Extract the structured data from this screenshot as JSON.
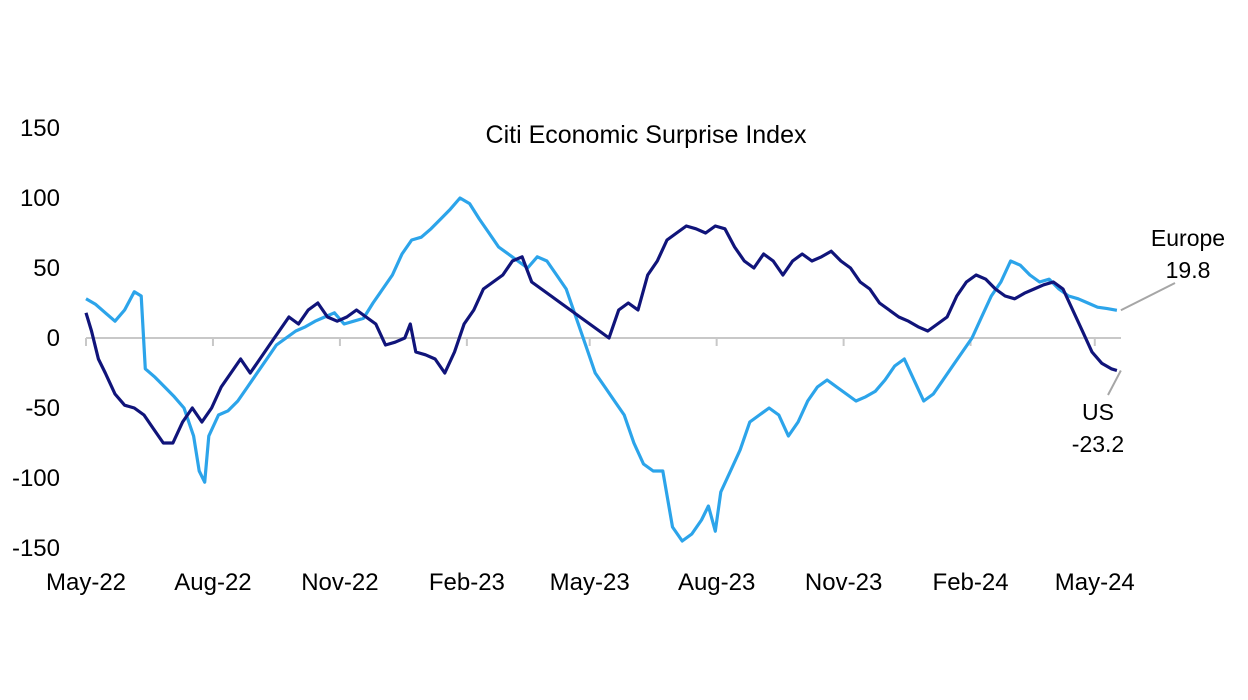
{
  "chart_data": {
    "type": "line",
    "title": "Citi Economic Surprise Index",
    "xlabel": "",
    "ylabel": "",
    "x_range": [
      "2022-05-01",
      "2024-05-20"
    ],
    "ylim": [
      -150,
      150
    ],
    "y_ticks": [
      150,
      100,
      50,
      0,
      -50,
      -100,
      -150
    ],
    "x_ticks": [
      {
        "date": "2022-05-01",
        "label": "May-22"
      },
      {
        "date": "2022-08-01",
        "label": "Aug-22"
      },
      {
        "date": "2022-11-01",
        "label": "Nov-22"
      },
      {
        "date": "2023-02-01",
        "label": "Feb-23"
      },
      {
        "date": "2023-05-01",
        "label": "May-23"
      },
      {
        "date": "2023-08-01",
        "label": "Aug-23"
      },
      {
        "date": "2023-11-01",
        "label": "Nov-23"
      },
      {
        "date": "2024-02-01",
        "label": "Feb-24"
      },
      {
        "date": "2024-05-01",
        "label": "May-24"
      }
    ],
    "grid": false,
    "legend": "none",
    "annotations": [
      {
        "series": "Europe",
        "label": "Europe",
        "value_label": "19.8"
      },
      {
        "series": "US",
        "label": "US",
        "value_label": "-23.2"
      }
    ],
    "series": [
      {
        "name": "Europe",
        "color": "#2ca4ea",
        "points": [
          [
            "2022-05-01",
            28
          ],
          [
            "2022-05-08",
            24
          ],
          [
            "2022-05-15",
            18
          ],
          [
            "2022-05-22",
            12
          ],
          [
            "2022-05-29",
            20
          ],
          [
            "2022-06-05",
            33
          ],
          [
            "2022-06-10",
            30
          ],
          [
            "2022-06-13",
            -22
          ],
          [
            "2022-06-20",
            -28
          ],
          [
            "2022-06-27",
            -35
          ],
          [
            "2022-07-04",
            -42
          ],
          [
            "2022-07-11",
            -50
          ],
          [
            "2022-07-18",
            -70
          ],
          [
            "2022-07-22",
            -95
          ],
          [
            "2022-07-26",
            -103
          ],
          [
            "2022-07-29",
            -70
          ],
          [
            "2022-08-05",
            -55
          ],
          [
            "2022-08-12",
            -52
          ],
          [
            "2022-08-19",
            -45
          ],
          [
            "2022-08-26",
            -35
          ],
          [
            "2022-09-02",
            -25
          ],
          [
            "2022-09-09",
            -15
          ],
          [
            "2022-09-16",
            -5
          ],
          [
            "2022-09-23",
            0
          ],
          [
            "2022-09-30",
            5
          ],
          [
            "2022-10-07",
            8
          ],
          [
            "2022-10-14",
            12
          ],
          [
            "2022-10-21",
            15
          ],
          [
            "2022-10-28",
            18
          ],
          [
            "2022-11-04",
            10
          ],
          [
            "2022-11-11",
            12
          ],
          [
            "2022-11-18",
            14
          ],
          [
            "2022-11-25",
            25
          ],
          [
            "2022-12-02",
            35
          ],
          [
            "2022-12-09",
            45
          ],
          [
            "2022-12-16",
            60
          ],
          [
            "2022-12-23",
            70
          ],
          [
            "2022-12-30",
            72
          ],
          [
            "2023-01-06",
            78
          ],
          [
            "2023-01-13",
            85
          ],
          [
            "2023-01-20",
            92
          ],
          [
            "2023-01-27",
            100
          ],
          [
            "2023-02-03",
            96
          ],
          [
            "2023-02-10",
            85
          ],
          [
            "2023-02-17",
            75
          ],
          [
            "2023-02-24",
            65
          ],
          [
            "2023-03-03",
            60
          ],
          [
            "2023-03-10",
            55
          ],
          [
            "2023-03-17",
            50
          ],
          [
            "2023-03-24",
            58
          ],
          [
            "2023-03-31",
            55
          ],
          [
            "2023-04-07",
            45
          ],
          [
            "2023-04-14",
            35
          ],
          [
            "2023-04-21",
            15
          ],
          [
            "2023-04-28",
            -5
          ],
          [
            "2023-05-05",
            -25
          ],
          [
            "2023-05-12",
            -35
          ],
          [
            "2023-05-19",
            -45
          ],
          [
            "2023-05-26",
            -55
          ],
          [
            "2023-06-02",
            -75
          ],
          [
            "2023-06-09",
            -90
          ],
          [
            "2023-06-16",
            -95
          ],
          [
            "2023-06-23",
            -95
          ],
          [
            "2023-06-30",
            -135
          ],
          [
            "2023-07-07",
            -145
          ],
          [
            "2023-07-14",
            -140
          ],
          [
            "2023-07-21",
            -130
          ],
          [
            "2023-07-26",
            -120
          ],
          [
            "2023-07-31",
            -138
          ],
          [
            "2023-08-04",
            -110
          ],
          [
            "2023-08-11",
            -95
          ],
          [
            "2023-08-18",
            -80
          ],
          [
            "2023-08-25",
            -60
          ],
          [
            "2023-09-01",
            -55
          ],
          [
            "2023-09-08",
            -50
          ],
          [
            "2023-09-15",
            -55
          ],
          [
            "2023-09-22",
            -70
          ],
          [
            "2023-09-29",
            -60
          ],
          [
            "2023-10-06",
            -45
          ],
          [
            "2023-10-13",
            -35
          ],
          [
            "2023-10-20",
            -30
          ],
          [
            "2023-10-27",
            -35
          ],
          [
            "2023-11-03",
            -40
          ],
          [
            "2023-11-10",
            -45
          ],
          [
            "2023-11-17",
            -42
          ],
          [
            "2023-11-24",
            -38
          ],
          [
            "2023-12-01",
            -30
          ],
          [
            "2023-12-08",
            -20
          ],
          [
            "2023-12-15",
            -15
          ],
          [
            "2023-12-22",
            -30
          ],
          [
            "2023-12-29",
            -45
          ],
          [
            "2024-01-05",
            -40
          ],
          [
            "2024-01-12",
            -30
          ],
          [
            "2024-01-19",
            -20
          ],
          [
            "2024-01-26",
            -10
          ],
          [
            "2024-02-02",
            0
          ],
          [
            "2024-02-09",
            15
          ],
          [
            "2024-02-16",
            30
          ],
          [
            "2024-02-23",
            40
          ],
          [
            "2024-03-01",
            55
          ],
          [
            "2024-03-08",
            52
          ],
          [
            "2024-03-15",
            45
          ],
          [
            "2024-03-22",
            40
          ],
          [
            "2024-03-29",
            42
          ],
          [
            "2024-04-05",
            35
          ],
          [
            "2024-04-12",
            30
          ],
          [
            "2024-04-19",
            28
          ],
          [
            "2024-04-26",
            25
          ],
          [
            "2024-05-03",
            22
          ],
          [
            "2024-05-10",
            21
          ],
          [
            "2024-05-17",
            19.8
          ]
        ]
      },
      {
        "name": "US",
        "color": "#10147a",
        "points": [
          [
            "2022-05-01",
            18
          ],
          [
            "2022-05-05",
            5
          ],
          [
            "2022-05-10",
            -15
          ],
          [
            "2022-05-15",
            -25
          ],
          [
            "2022-05-22",
            -40
          ],
          [
            "2022-05-29",
            -48
          ],
          [
            "2022-06-05",
            -50
          ],
          [
            "2022-06-12",
            -55
          ],
          [
            "2022-06-19",
            -65
          ],
          [
            "2022-06-26",
            -75
          ],
          [
            "2022-07-03",
            -75
          ],
          [
            "2022-07-10",
            -60
          ],
          [
            "2022-07-17",
            -50
          ],
          [
            "2022-07-24",
            -60
          ],
          [
            "2022-07-31",
            -50
          ],
          [
            "2022-08-07",
            -35
          ],
          [
            "2022-08-14",
            -25
          ],
          [
            "2022-08-21",
            -15
          ],
          [
            "2022-08-28",
            -25
          ],
          [
            "2022-09-04",
            -15
          ],
          [
            "2022-09-11",
            -5
          ],
          [
            "2022-09-18",
            5
          ],
          [
            "2022-09-25",
            15
          ],
          [
            "2022-10-02",
            10
          ],
          [
            "2022-10-09",
            20
          ],
          [
            "2022-10-16",
            25
          ],
          [
            "2022-10-23",
            15
          ],
          [
            "2022-10-30",
            12
          ],
          [
            "2022-11-06",
            15
          ],
          [
            "2022-11-13",
            20
          ],
          [
            "2022-11-20",
            15
          ],
          [
            "2022-11-27",
            10
          ],
          [
            "2022-12-04",
            -5
          ],
          [
            "2022-12-11",
            -3
          ],
          [
            "2022-12-18",
            0
          ],
          [
            "2022-12-22",
            10
          ],
          [
            "2022-12-26",
            -10
          ],
          [
            "2023-01-02",
            -12
          ],
          [
            "2023-01-09",
            -15
          ],
          [
            "2023-01-16",
            -25
          ],
          [
            "2023-01-23",
            -10
          ],
          [
            "2023-01-30",
            10
          ],
          [
            "2023-02-06",
            20
          ],
          [
            "2023-02-13",
            35
          ],
          [
            "2023-02-20",
            40
          ],
          [
            "2023-02-27",
            45
          ],
          [
            "2023-03-06",
            55
          ],
          [
            "2023-03-13",
            58
          ],
          [
            "2023-03-20",
            40
          ],
          [
            "2023-03-27",
            35
          ],
          [
            "2023-04-03",
            30
          ],
          [
            "2023-04-10",
            25
          ],
          [
            "2023-04-17",
            20
          ],
          [
            "2023-04-24",
            15
          ],
          [
            "2023-05-01",
            10
          ],
          [
            "2023-05-08",
            5
          ],
          [
            "2023-05-15",
            0
          ],
          [
            "2023-05-22",
            20
          ],
          [
            "2023-05-29",
            25
          ],
          [
            "2023-06-05",
            20
          ],
          [
            "2023-06-12",
            45
          ],
          [
            "2023-06-19",
            55
          ],
          [
            "2023-06-26",
            70
          ],
          [
            "2023-07-03",
            75
          ],
          [
            "2023-07-10",
            80
          ],
          [
            "2023-07-17",
            78
          ],
          [
            "2023-07-24",
            75
          ],
          [
            "2023-07-31",
            80
          ],
          [
            "2023-08-07",
            78
          ],
          [
            "2023-08-14",
            65
          ],
          [
            "2023-08-21",
            55
          ],
          [
            "2023-08-28",
            50
          ],
          [
            "2023-09-04",
            60
          ],
          [
            "2023-09-11",
            55
          ],
          [
            "2023-09-18",
            45
          ],
          [
            "2023-09-25",
            55
          ],
          [
            "2023-10-02",
            60
          ],
          [
            "2023-10-09",
            55
          ],
          [
            "2023-10-16",
            58
          ],
          [
            "2023-10-23",
            62
          ],
          [
            "2023-10-30",
            55
          ],
          [
            "2023-11-06",
            50
          ],
          [
            "2023-11-13",
            40
          ],
          [
            "2023-11-20",
            35
          ],
          [
            "2023-11-27",
            25
          ],
          [
            "2023-12-04",
            20
          ],
          [
            "2023-12-11",
            15
          ],
          [
            "2023-12-18",
            12
          ],
          [
            "2023-12-25",
            8
          ],
          [
            "2024-01-01",
            5
          ],
          [
            "2024-01-08",
            10
          ],
          [
            "2024-01-15",
            15
          ],
          [
            "2024-01-22",
            30
          ],
          [
            "2024-01-29",
            40
          ],
          [
            "2024-02-05",
            45
          ],
          [
            "2024-02-12",
            42
          ],
          [
            "2024-02-19",
            35
          ],
          [
            "2024-02-26",
            30
          ],
          [
            "2024-03-04",
            28
          ],
          [
            "2024-03-11",
            32
          ],
          [
            "2024-03-18",
            35
          ],
          [
            "2024-03-25",
            38
          ],
          [
            "2024-04-01",
            40
          ],
          [
            "2024-04-08",
            35
          ],
          [
            "2024-04-15",
            20
          ],
          [
            "2024-04-22",
            5
          ],
          [
            "2024-04-29",
            -10
          ],
          [
            "2024-05-06",
            -18
          ],
          [
            "2024-05-13",
            -22
          ],
          [
            "2024-05-17",
            -23.2
          ]
        ]
      }
    ]
  }
}
